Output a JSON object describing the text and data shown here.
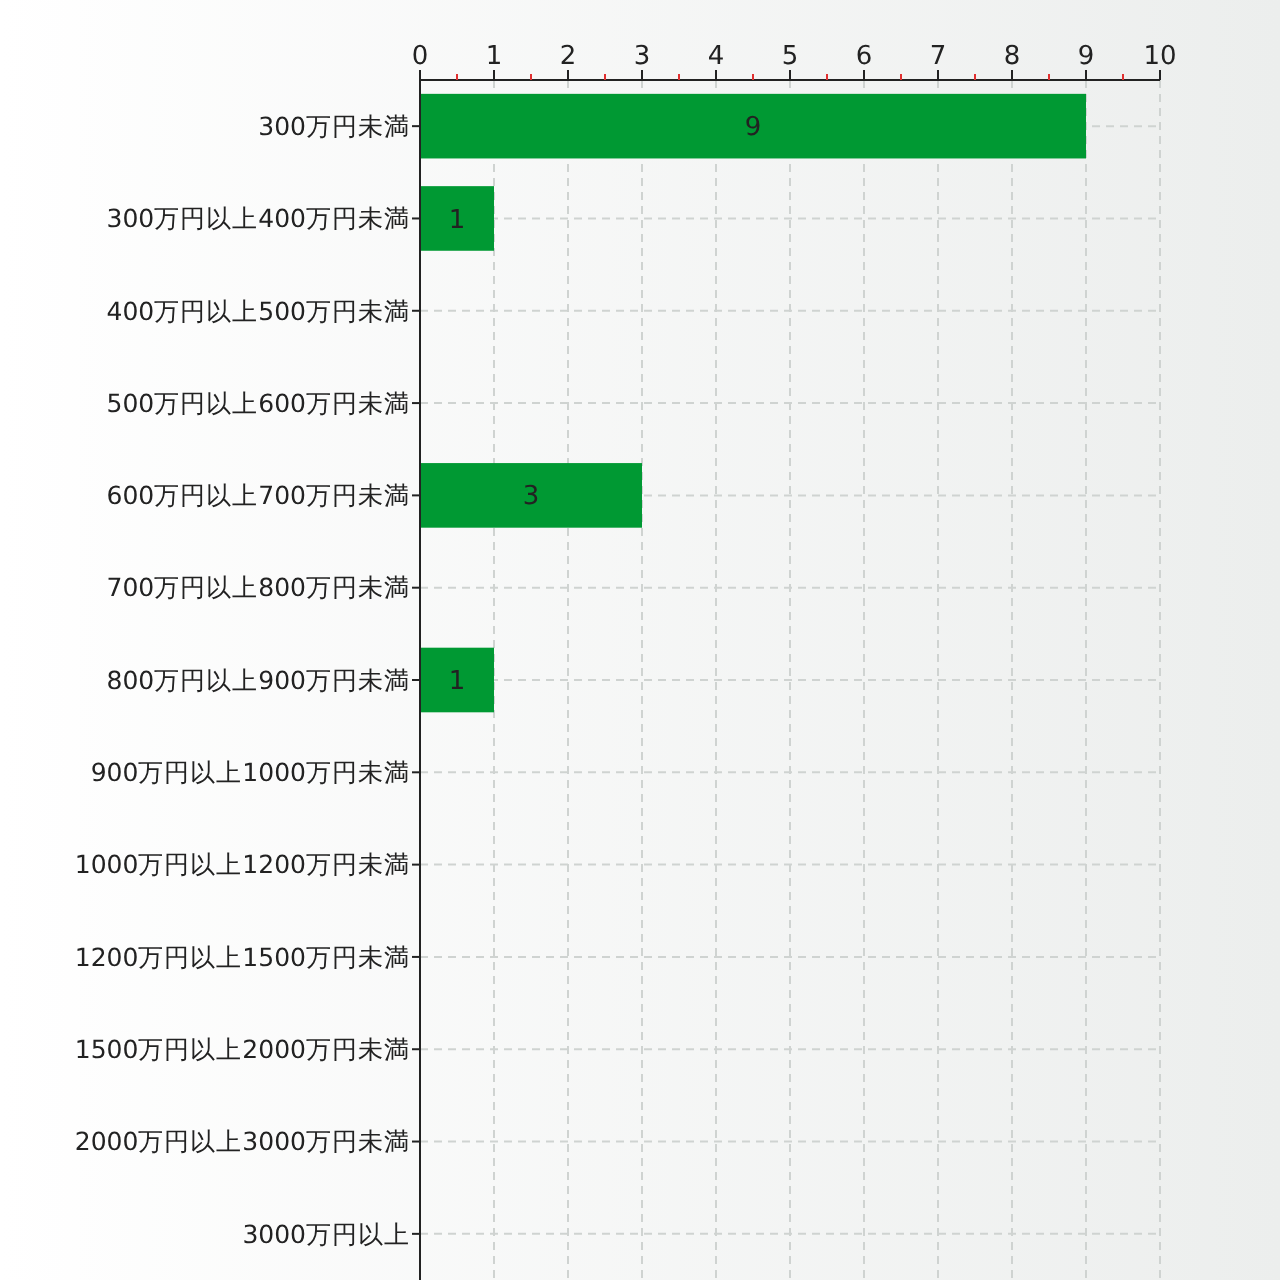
{
  "chart_data": {
    "type": "bar",
    "orientation": "horizontal",
    "categories": [
      "300万円未満",
      "300万円以上400万円未満",
      "400万円以上500万円未満",
      "500万円以上600万円未満",
      "600万円以上700万円未満",
      "700万円以上800万円未満",
      "800万円以上900万円未満",
      "900万円以上1000万円未満",
      "1000万円以上1200万円未満",
      "1200万円以上1500万円未満",
      "1500万円以上2000万円未満",
      "2000万円以上3000万円未満",
      "3000万円以上"
    ],
    "values": [
      9,
      1,
      0,
      0,
      3,
      0,
      1,
      0,
      0,
      0,
      0,
      0,
      0
    ],
    "value_labels": [
      "9",
      "1",
      null,
      null,
      "3",
      null,
      "1",
      null,
      null,
      null,
      null,
      null,
      null
    ],
    "color": "#009933",
    "xlim": [
      0,
      10
    ],
    "xticks": [
      0,
      {
        "value": 0.5,
        "label": null
      },
      1,
      {
        "value": 1.5,
        "label": null
      },
      2,
      {
        "value": 2.5,
        "label": null
      },
      3,
      {
        "value": 3.5,
        "label": null
      },
      4,
      {
        "value": 4.5,
        "label": null
      },
      5,
      {
        "value": 5.5,
        "label": null
      },
      6,
      {
        "value": 6.5,
        "label": null
      },
      7,
      {
        "value": 7.5,
        "label": null
      },
      8,
      {
        "value": 8.5,
        "label": null
      },
      9,
      {
        "value": 9.5,
        "label": null
      },
      10
    ],
    "grid": true
  }
}
